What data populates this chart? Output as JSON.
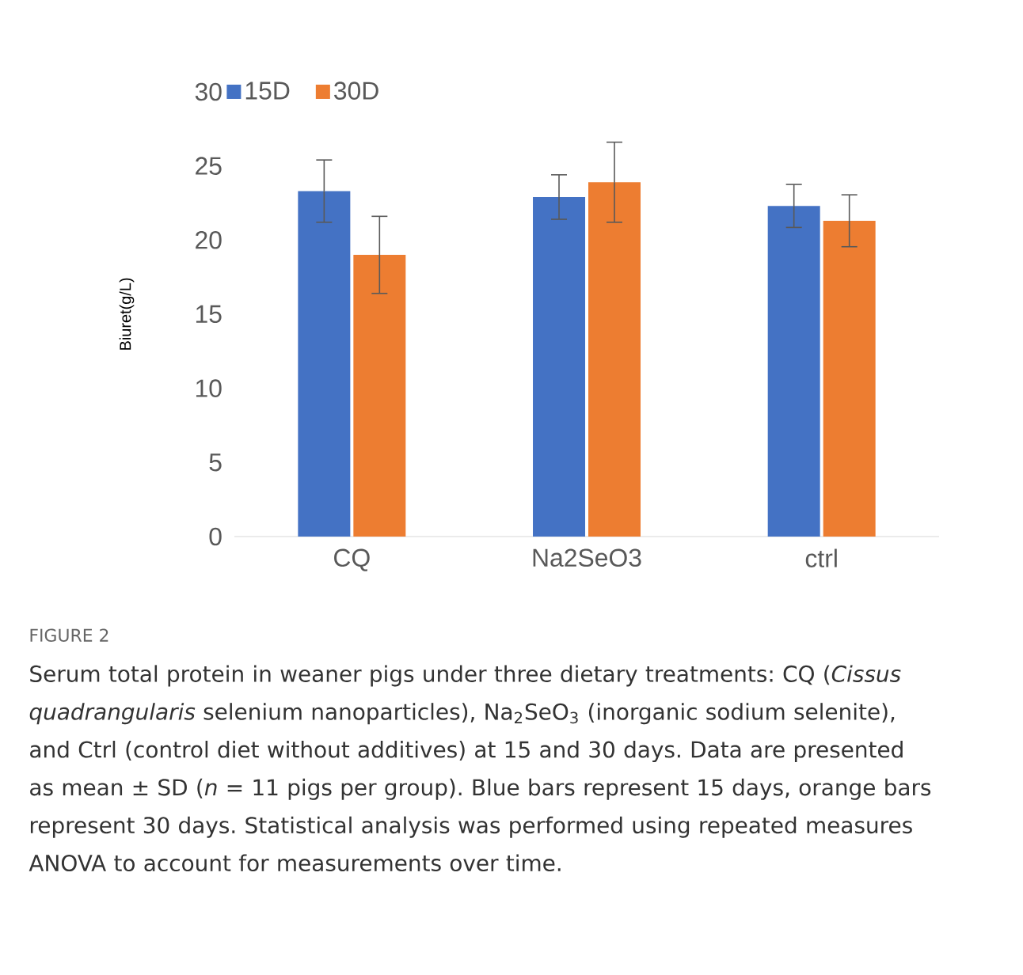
{
  "chart_data": {
    "type": "bar",
    "ylabel": "Biuret(g/L)",
    "categories": [
      "CQ",
      "Na2SeO3",
      "ctrl"
    ],
    "series": [
      {
        "name": "15D",
        "color": "#4472c4",
        "values": [
          23.3,
          22.9,
          22.3
        ],
        "errors": [
          2.1,
          1.5,
          1.45
        ]
      },
      {
        "name": "30D",
        "color": "#ed7d31",
        "values": [
          19.0,
          23.9,
          21.3
        ],
        "errors": [
          2.6,
          2.7,
          1.75
        ]
      }
    ],
    "ylim": [
      0,
      30
    ],
    "yticks": [
      0,
      5,
      10,
      15,
      20,
      25,
      30
    ],
    "legend": "top left",
    "annotations": [
      "FIGURE 2",
      "Serum total protein in weaner pigs under three dietary treatments: CQ (*Cissus quadrangularis* selenium nanoparticles), Na$_{2}$SeO$_{3}$ (inorganic sodium selenite), and Ctrl (control diet without additives) at 15 and 30 days. Data are presented as mean ± SD (*n* = 11 pigs per group). Blue bars represent 15 days, orange bars represent 30 days. Statistical analysis was performed using repeated measures ANOVA to account for measurements over time."
    ]
  }
}
